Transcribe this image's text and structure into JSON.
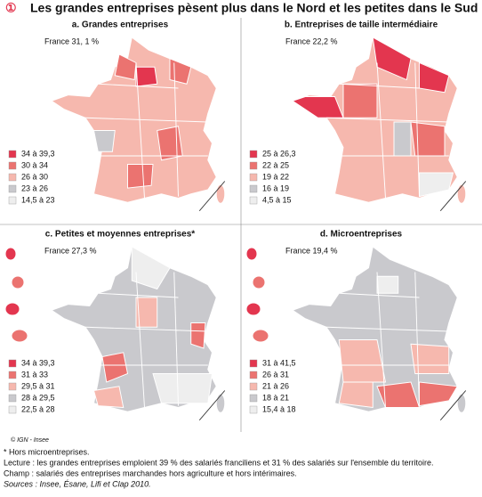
{
  "figure_number": "①",
  "title": "Les grandes entreprises pèsent plus dans le Nord et les petites dans le Sud",
  "panels": [
    {
      "title": "a. Grandes entreprises",
      "france": "France 31, 1 %",
      "legend": [
        {
          "label": "34 à 39,3",
          "color": "#e3364f"
        },
        {
          "label": "30 à 34",
          "color": "#eb7370"
        },
        {
          "label": "26 à 30",
          "color": "#f6b8ae"
        },
        {
          "label": "23 à 26",
          "color": "#c9c9cd"
        },
        {
          "label": "14,5 à 23",
          "color": "#eeeeee"
        }
      ]
    },
    {
      "title": "b. Entreprises de taille intermédiaire",
      "france": "France 22,2 %",
      "legend": [
        {
          "label": "25 à 26,3",
          "color": "#e3364f"
        },
        {
          "label": "22 à 25",
          "color": "#eb7370"
        },
        {
          "label": "19 à 22",
          "color": "#f6b8ae"
        },
        {
          "label": "16 à 19",
          "color": "#c9c9cd"
        },
        {
          "label": "4,5 à 15",
          "color": "#eeeeee"
        }
      ]
    },
    {
      "title": "c. Petites et moyennes entreprises*",
      "france": "France 27,3 %",
      "legend": [
        {
          "label": "34 à 39,3",
          "color": "#e3364f"
        },
        {
          "label": "31 à 33",
          "color": "#eb7370"
        },
        {
          "label": "29,5 à 31",
          "color": "#f6b8ae"
        },
        {
          "label": "28 à 29,5",
          "color": "#c9c9cd"
        },
        {
          "label": "22,5 à 28",
          "color": "#eeeeee"
        }
      ]
    },
    {
      "title": "d. Microentreprises",
      "france": "France 19,4 %",
      "legend": [
        {
          "label": "31 à 41,5",
          "color": "#e3364f"
        },
        {
          "label": "26 à 31",
          "color": "#eb7370"
        },
        {
          "label": "21 à 26",
          "color": "#f6b8ae"
        },
        {
          "label": "18 à 21",
          "color": "#c9c9cd"
        },
        {
          "label": "15,4 à 18",
          "color": "#eeeeee"
        }
      ]
    }
  ],
  "credit": "© IGN - Insee",
  "notes": [
    "* Hors microentreprises.",
    "Lecture : les grandes entreprises emploient 39 % des salariés franciliens et 31 % des salariés sur l'ensemble du territoire.",
    "Champ : salariés des entreprises marchandes hors agriculture et hors intérimaires.",
    "Sources : Insee, Ésane, Lifi et Clap 2010."
  ]
}
